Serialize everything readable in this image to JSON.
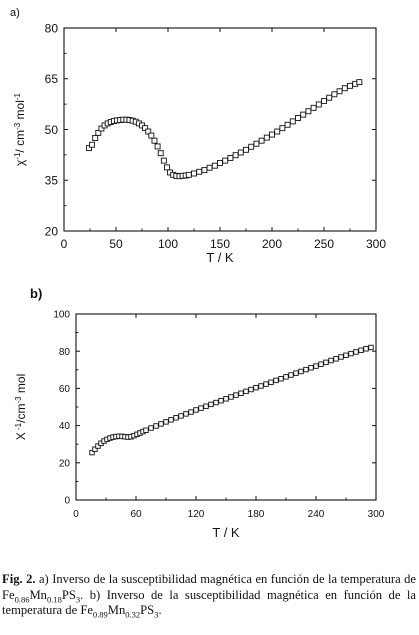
{
  "chart_data": [
    {
      "type": "scatter",
      "panel_label": "a)",
      "xlabel": "T / K",
      "ylabel_parts": [
        "χ",
        "-1",
        "/ cm",
        "-3",
        " mol",
        "-1"
      ],
      "xlim": [
        0,
        300
      ],
      "ylim": [
        20,
        80
      ],
      "x_ticks": [
        0,
        50,
        100,
        150,
        200,
        250,
        300
      ],
      "y_ticks": [
        20,
        35,
        50,
        65,
        80
      ],
      "marker": "open-square",
      "grid": false,
      "series": [
        {
          "x": [
            24,
            27,
            30,
            33,
            36,
            39,
            42,
            45,
            48,
            51,
            54,
            57,
            60,
            63,
            66,
            69,
            72,
            75,
            78,
            81,
            84,
            87,
            90,
            93,
            96,
            99,
            102,
            105,
            108,
            111,
            114,
            117,
            120,
            125,
            130,
            135,
            140,
            145,
            150,
            155,
            160,
            165,
            170,
            175,
            180,
            185,
            190,
            195,
            200,
            205,
            210,
            215,
            220,
            225,
            230,
            235,
            240,
            245,
            250,
            255,
            260,
            265,
            270,
            275,
            280,
            284
          ],
          "y": [
            44.5,
            45.5,
            47.5,
            49.0,
            50.3,
            51.2,
            51.8,
            52.2,
            52.5,
            52.7,
            52.8,
            52.9,
            52.9,
            52.8,
            52.6,
            52.3,
            51.8,
            51.2,
            50.4,
            49.4,
            48.2,
            46.7,
            45.0,
            43.0,
            40.8,
            38.8,
            37.3,
            36.6,
            36.3,
            36.2,
            36.3,
            36.4,
            36.6,
            37.0,
            37.5,
            38.0,
            38.7,
            39.3,
            40.1,
            40.8,
            41.6,
            42.4,
            43.2,
            44.0,
            44.9,
            45.8,
            46.7,
            47.6,
            48.5,
            49.4,
            50.4,
            51.4,
            52.4,
            53.4,
            54.4,
            55.4,
            56.4,
            57.4,
            58.4,
            59.4,
            60.4,
            61.3,
            62.2,
            62.9,
            63.5,
            64.0
          ]
        }
      ]
    },
    {
      "type": "scatter",
      "panel_label": "b)",
      "xlabel": "T / K",
      "ylabel_parts": [
        "X",
        " -1",
        "/cm",
        "-3",
        " mol"
      ],
      "xlim": [
        0,
        300
      ],
      "ylim": [
        0,
        100
      ],
      "x_ticks": [
        0,
        60,
        120,
        180,
        240,
        300
      ],
      "y_ticks": [
        0,
        20,
        40,
        60,
        80,
        100
      ],
      "marker": "open-square",
      "grid": false,
      "series": [
        {
          "x": [
            16,
            19,
            22,
            25,
            28,
            31,
            34,
            37,
            40,
            43,
            46,
            49,
            52,
            55,
            58,
            61,
            64,
            67,
            70,
            75,
            80,
            85,
            90,
            95,
            100,
            105,
            110,
            115,
            120,
            125,
            130,
            135,
            140,
            145,
            150,
            155,
            160,
            165,
            170,
            175,
            180,
            185,
            190,
            195,
            200,
            205,
            210,
            215,
            220,
            225,
            230,
            235,
            240,
            245,
            250,
            255,
            260,
            265,
            270,
            275,
            280,
            285,
            290,
            295
          ],
          "y": [
            25.5,
            27.3,
            29.0,
            30.5,
            31.7,
            32.6,
            33.3,
            33.8,
            34.1,
            34.3,
            34.2,
            34.0,
            33.8,
            34.0,
            34.6,
            35.3,
            36.0,
            36.8,
            37.5,
            38.7,
            39.8,
            40.9,
            42.0,
            43.1,
            44.2,
            45.2,
            46.3,
            47.3,
            48.4,
            49.4,
            50.4,
            51.4,
            52.4,
            53.4,
            54.4,
            55.4,
            56.4,
            57.4,
            58.4,
            59.4,
            60.4,
            61.3,
            62.3,
            63.3,
            64.3,
            65.2,
            66.2,
            67.2,
            68.2,
            69.1,
            70.1,
            71.1,
            72.0,
            73.0,
            74.0,
            75.0,
            75.9,
            76.9,
            77.8,
            78.7,
            79.6,
            80.5,
            81.3,
            82.0
          ]
        }
      ]
    }
  ],
  "caption": {
    "label": "Fig. 2.",
    "parts": [
      {
        "t": " a) Inverso de la susceptibilidad magnética en función de la temperatura de Fe"
      },
      {
        "t": "0.86",
        "sub": true
      },
      {
        "t": "Mn"
      },
      {
        "t": "0.18",
        "sub": true
      },
      {
        "t": "PS"
      },
      {
        "t": "3",
        "sub": true
      },
      {
        "t": ". b) Inverso de la susceptibilidad magnética en función de la temperatura de Fe"
      },
      {
        "t": "0.89",
        "sub": true
      },
      {
        "t": "Mn"
      },
      {
        "t": "0.32",
        "sub": true
      },
      {
        "t": "PS"
      },
      {
        "t": "3",
        "sub": true
      },
      {
        "t": "."
      }
    ]
  }
}
